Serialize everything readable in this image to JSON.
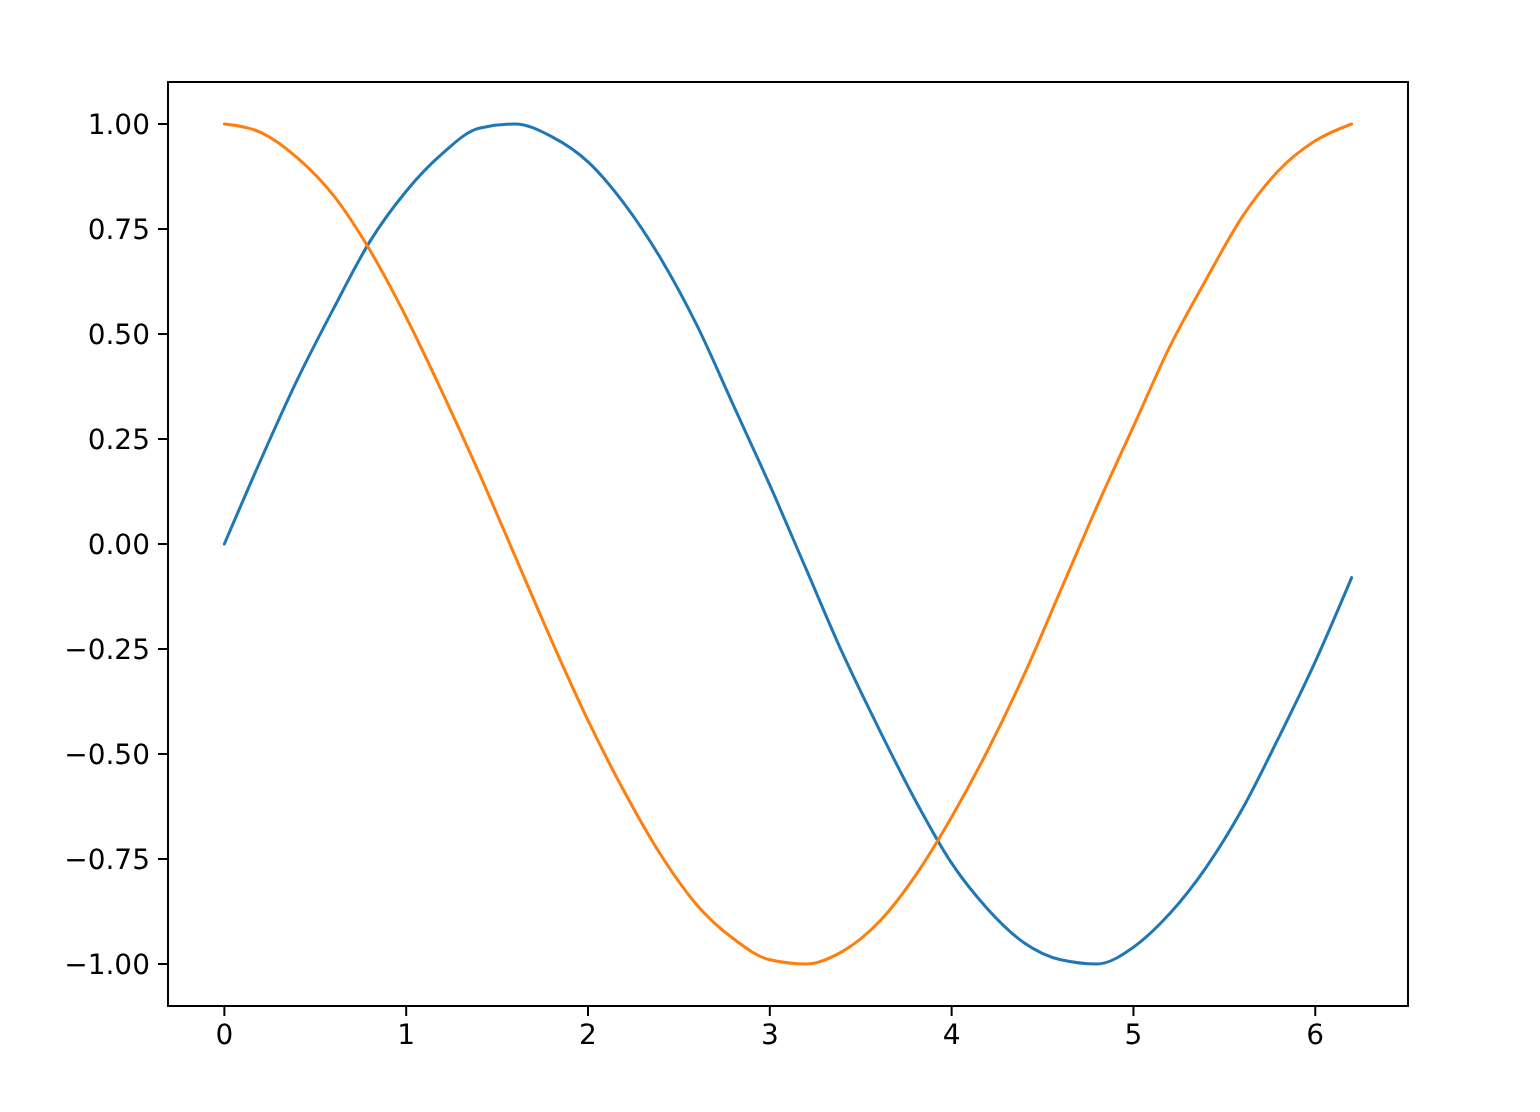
{
  "chart_data": {
    "type": "line",
    "x": [
      0,
      0.2,
      0.4,
      0.6,
      0.8,
      1.0,
      1.2,
      1.4,
      1.6,
      1.8,
      2.0,
      2.2,
      2.4,
      2.6,
      2.8,
      3.0,
      3.2,
      3.4,
      3.6,
      3.8,
      4.0,
      4.2,
      4.4,
      4.6,
      4.8,
      5.0,
      5.2,
      5.4,
      5.6,
      5.8,
      6.0,
      6.2
    ],
    "series": [
      {
        "color": "#1f77b4",
        "values": [
          0,
          0.2,
          0.39,
          0.56,
          0.72,
          0.84,
          0.93,
          0.99,
          1.0,
          0.97,
          0.91,
          0.81,
          0.68,
          0.52,
          0.33,
          0.14,
          -0.06,
          -0.26,
          -0.44,
          -0.61,
          -0.76,
          -0.87,
          -0.95,
          -0.99,
          -1.0,
          -0.96,
          -0.88,
          -0.77,
          -0.63,
          -0.46,
          -0.28,
          -0.08
        ]
      },
      {
        "color": "#ff7f0e",
        "values": [
          1.0,
          0.98,
          0.92,
          0.83,
          0.7,
          0.54,
          0.36,
          0.17,
          -0.03,
          -0.23,
          -0.42,
          -0.59,
          -0.74,
          -0.86,
          -0.94,
          -0.99,
          -1.0,
          -0.97,
          -0.9,
          -0.79,
          -0.65,
          -0.49,
          -0.31,
          -0.11,
          0.09,
          0.28,
          0.47,
          0.63,
          0.78,
          0.89,
          0.96,
          1.0
        ]
      }
    ],
    "xlim": [
      -0.31,
      6.51
    ],
    "xticks": [
      0,
      1,
      2,
      3,
      4,
      5,
      6
    ],
    "ylim": [
      -1.1,
      1.1
    ],
    "yticks": [
      {
        "value": -1,
        "label": "−1.00"
      },
      {
        "value": -0.75,
        "label": "−0.75"
      },
      {
        "value": -0.5,
        "label": "−0.50"
      },
      {
        "value": -0.25,
        "label": "−0.25"
      },
      {
        "value": 0,
        "label": "0.00"
      },
      {
        "value": 0.25,
        "label": "0.25"
      },
      {
        "value": 0.5,
        "label": "0.50"
      },
      {
        "value": 0.75,
        "label": "0.75"
      },
      {
        "value": 1,
        "label": "1.00"
      }
    ],
    "grid": false,
    "marker": "none",
    "line_style": "solid"
  }
}
